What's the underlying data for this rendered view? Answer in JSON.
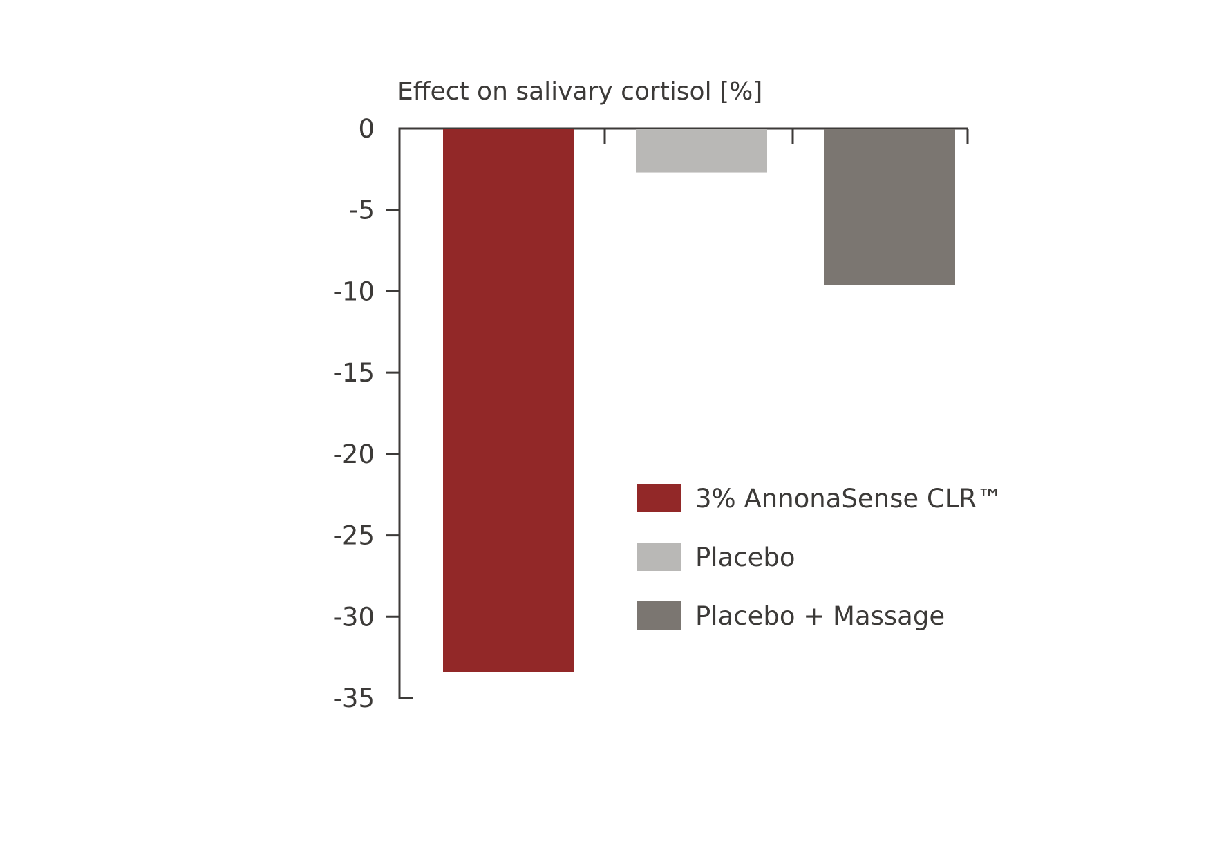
{
  "chart_data": {
    "type": "bar",
    "ylabel": "Effect on salivary cortisol [%]",
    "ylim": [
      -35,
      0
    ],
    "yticks": [
      0,
      -5,
      -10,
      -15,
      -20,
      -25,
      -30,
      -35
    ],
    "ytick_labels": [
      "0",
      "-5",
      "-10",
      "-15",
      "-20",
      "-25",
      "-30",
      "-35"
    ],
    "legend_position": "right",
    "grid": false,
    "series": [
      {
        "name": "3% AnnonaSense CLR™",
        "value": -33.4,
        "color": "#922828"
      },
      {
        "name": "Placebo",
        "value": -2.7,
        "color": "#b9b8b6"
      },
      {
        "name": "Placebo + Massage",
        "value": -9.6,
        "color": "#7b7671"
      }
    ]
  }
}
